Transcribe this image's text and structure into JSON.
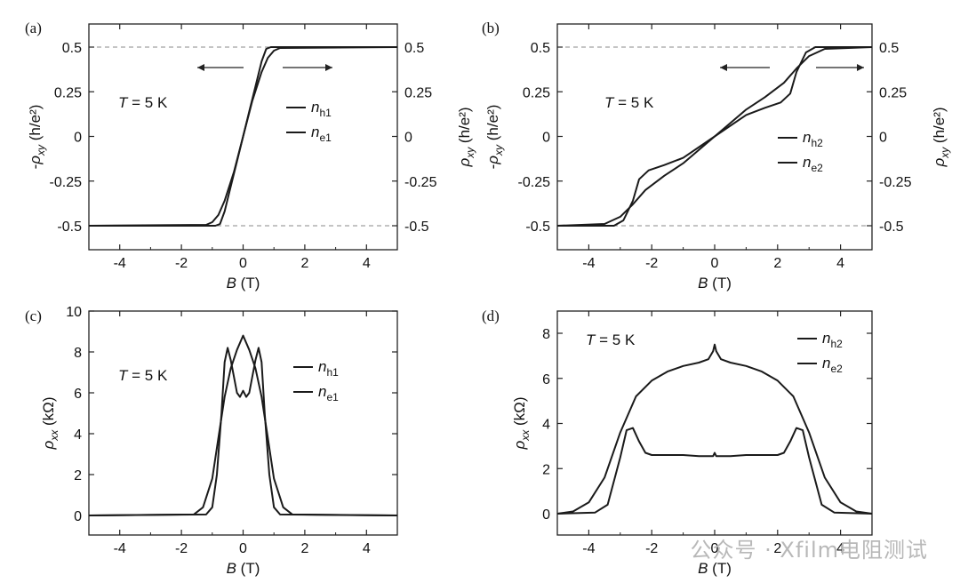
{
  "chart_data": [
    {
      "panel": "(a)",
      "type": "line",
      "xlabel": "B (T)",
      "ylabel_left": "-ρxy (h/e²)",
      "ylabel_right": "",
      "xlim": [
        -5,
        5
      ],
      "ylim": [
        -0.5,
        0.5
      ],
      "xticks": [
        "-4",
        "-2",
        "0",
        "2",
        "4"
      ],
      "yticks": [
        "0.5",
        "0.25",
        "0",
        "-0.25",
        "-0.5"
      ],
      "yticks_right": [
        "0.5",
        "0.25",
        "0",
        "-0.25",
        "-0.5"
      ],
      "annotation": "T = 5 K",
      "dashed_levels": [
        0.5,
        -0.5
      ],
      "sweep_arrows": [
        "left",
        "right"
      ],
      "series": [
        {
          "name": "nh1",
          "label_main": "n",
          "label_sub": "h1",
          "x": [
            -5,
            -1.2,
            -1.0,
            -0.8,
            -0.6,
            -0.3,
            0,
            0.3,
            0.6,
            0.8,
            1.0,
            1.2,
            5
          ],
          "y": [
            -0.5,
            -0.495,
            -0.48,
            -0.44,
            -0.36,
            -0.2,
            0,
            0.2,
            0.36,
            0.44,
            0.48,
            0.495,
            0.5
          ]
        },
        {
          "name": "ne1",
          "label_main": "n",
          "label_sub": "e1",
          "x": [
            -5,
            -0.9,
            -0.75,
            -0.6,
            -0.4,
            -0.2,
            0,
            0.2,
            0.4,
            0.6,
            0.75,
            0.9,
            5
          ],
          "y": [
            -0.5,
            -0.5,
            -0.49,
            -0.42,
            -0.28,
            -0.14,
            0,
            0.14,
            0.28,
            0.42,
            0.49,
            0.5,
            0.5
          ]
        }
      ]
    },
    {
      "panel": "(b)",
      "type": "line",
      "xlabel": "B (T)",
      "ylabel_left": "-ρxy (h/e²)",
      "ylabel_right": "ρxy (h/e²)",
      "ylabel_left2": "ρxy (h/e²)",
      "xlim": [
        -5,
        5
      ],
      "ylim": [
        -0.5,
        0.5
      ],
      "xticks": [
        "-4",
        "-2",
        "0",
        "2",
        "4"
      ],
      "yticks": [
        "0.5",
        "0.25",
        "0",
        "-0.25",
        "-0.5"
      ],
      "yticks_right": [
        "0.5",
        "0.25",
        "0",
        "-0.25",
        "-0.5"
      ],
      "annotation": "T = 5 K",
      "dashed_levels": [
        0.5,
        -0.5
      ],
      "sweep_arrows": [
        "left",
        "right"
      ],
      "series": [
        {
          "name": "nh2",
          "label_main": "n",
          "label_sub": "h2",
          "x": [
            -5,
            -3.5,
            -3.0,
            -2.6,
            -2.2,
            -1.6,
            -1.0,
            0,
            1.0,
            1.6,
            2.2,
            2.6,
            3.0,
            3.5,
            5
          ],
          "y": [
            -0.5,
            -0.49,
            -0.45,
            -0.38,
            -0.3,
            -0.22,
            -0.15,
            0,
            0.15,
            0.22,
            0.3,
            0.38,
            0.45,
            0.49,
            0.5
          ]
        },
        {
          "name": "ne2",
          "label_main": "n",
          "label_sub": "e2",
          "x": [
            -5,
            -3.2,
            -2.9,
            -2.6,
            -2.4,
            -2.1,
            -1.6,
            -1.0,
            0,
            1.0,
            1.6,
            2.1,
            2.4,
            2.6,
            2.9,
            3.2,
            5
          ],
          "y": [
            -0.5,
            -0.5,
            -0.47,
            -0.36,
            -0.24,
            -0.19,
            -0.16,
            -0.12,
            0,
            0.12,
            0.16,
            0.19,
            0.24,
            0.36,
            0.47,
            0.5,
            0.5
          ]
        }
      ]
    },
    {
      "panel": "(c)",
      "type": "line",
      "xlabel": "B (T)",
      "ylabel_left": "ρxx (kΩ)",
      "xlim": [
        -5,
        5
      ],
      "ylim": [
        0,
        10
      ],
      "xticks": [
        "-4",
        "-2",
        "0",
        "2",
        "4"
      ],
      "yticks": [
        "10",
        "8",
        "6",
        "4",
        "2",
        "0"
      ],
      "annotation": "T = 5 K",
      "series": [
        {
          "name": "nh1",
          "label_main": "n",
          "label_sub": "h1",
          "x": [
            -5,
            -1.6,
            -1.3,
            -1.0,
            -0.8,
            -0.6,
            -0.4,
            -0.2,
            0,
            0.2,
            0.4,
            0.6,
            0.8,
            1.0,
            1.3,
            1.6,
            5
          ],
          "y": [
            0,
            0.05,
            0.4,
            1.8,
            3.8,
            5.8,
            7.2,
            8.1,
            8.8,
            8.1,
            7.2,
            5.8,
            3.8,
            1.8,
            0.4,
            0.05,
            0
          ]
        },
        {
          "name": "ne1",
          "label_main": "n",
          "label_sub": "e1",
          "x": [
            -5,
            -1.2,
            -1.0,
            -0.85,
            -0.7,
            -0.6,
            -0.5,
            -0.4,
            -0.3,
            -0.2,
            -0.1,
            0,
            0.1,
            0.2,
            0.3,
            0.4,
            0.5,
            0.6,
            0.7,
            0.85,
            1.0,
            1.2,
            5
          ],
          "y": [
            0,
            0.05,
            0.4,
            2.0,
            5.0,
            7.5,
            8.2,
            7.6,
            6.8,
            6.0,
            5.8,
            6.1,
            5.8,
            6.0,
            6.8,
            7.6,
            8.2,
            7.5,
            5.0,
            2.0,
            0.4,
            0.05,
            0
          ]
        }
      ]
    },
    {
      "panel": "(d)",
      "type": "line",
      "xlabel": "B (T)",
      "ylabel_left": "ρxx (kΩ)",
      "xlim": [
        -5,
        5
      ],
      "ylim": [
        -0.2,
        8.6
      ],
      "xticks": [
        "-4",
        "-2",
        "0",
        "2",
        "4"
      ],
      "yticks": [
        "8",
        "6",
        "4",
        "2",
        "0"
      ],
      "annotation": "T = 5 K",
      "series": [
        {
          "name": "nh2",
          "label_main": "n",
          "label_sub": "h2",
          "x": [
            -5,
            -4.5,
            -4.0,
            -3.5,
            -3.0,
            -2.5,
            -2.0,
            -1.5,
            -1.0,
            -0.5,
            -0.2,
            -0.05,
            0,
            0.05,
            0.2,
            0.5,
            1.0,
            1.5,
            2.0,
            2.5,
            3.0,
            3.5,
            4.0,
            4.5,
            5
          ],
          "y": [
            0,
            0.1,
            0.5,
            1.6,
            3.6,
            5.2,
            5.9,
            6.3,
            6.55,
            6.7,
            6.85,
            7.2,
            7.5,
            7.2,
            6.85,
            6.7,
            6.55,
            6.3,
            5.9,
            5.2,
            3.6,
            1.6,
            0.5,
            0.1,
            0
          ]
        },
        {
          "name": "ne2",
          "label_main": "n",
          "label_sub": "e2",
          "x": [
            -5,
            -3.8,
            -3.4,
            -3.0,
            -2.8,
            -2.6,
            -2.4,
            -2.2,
            -2.0,
            -1.5,
            -1.0,
            -0.5,
            -0.05,
            0,
            0.05,
            0.5,
            1.0,
            1.5,
            2.0,
            2.2,
            2.4,
            2.6,
            2.8,
            3.0,
            3.4,
            3.8,
            5
          ],
          "y": [
            0,
            0.05,
            0.4,
            2.5,
            3.7,
            3.8,
            3.2,
            2.7,
            2.6,
            2.6,
            2.6,
            2.55,
            2.55,
            2.7,
            2.55,
            2.55,
            2.6,
            2.6,
            2.6,
            2.7,
            3.2,
            3.8,
            3.7,
            2.5,
            0.4,
            0.05,
            0
          ]
        }
      ]
    }
  ],
  "watermark": "公众号 · Xfilm电阻测试"
}
